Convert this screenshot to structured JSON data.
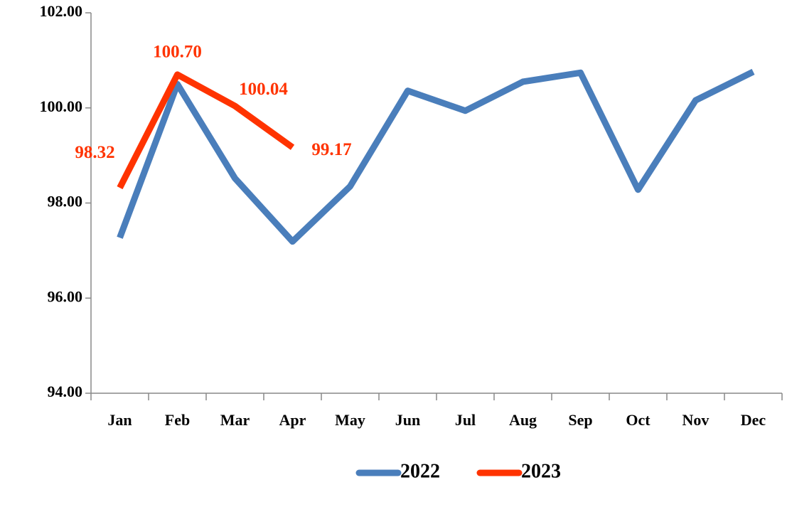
{
  "chart_data": {
    "type": "line",
    "categories": [
      "Jan",
      "Feb",
      "Mar",
      "Apr",
      "May",
      "Jun",
      "Jul",
      "Aug",
      "Sep",
      "Oct",
      "Nov",
      "Dec"
    ],
    "series": [
      {
        "name": "2022",
        "color": "#4a7ebb",
        "values": [
          97.27,
          100.5,
          98.52,
          97.19,
          98.35,
          100.36,
          99.94,
          100.55,
          100.74,
          98.28,
          100.16,
          100.76
        ]
      },
      {
        "name": "2023",
        "color": "#ff3300",
        "values": [
          98.32,
          100.7,
          100.04,
          99.17,
          null,
          null,
          null,
          null,
          null,
          null,
          null,
          null
        ],
        "value_labels": [
          "98.32",
          "100.70",
          "100.04",
          "99.17",
          null,
          null,
          null,
          null,
          null,
          null,
          null,
          null
        ]
      }
    ],
    "ylim": [
      94,
      102
    ],
    "yticks": [
      {
        "value": 94,
        "label": "94.00"
      },
      {
        "value": 96,
        "label": "96.00"
      },
      {
        "value": 98,
        "label": "98.00"
      },
      {
        "value": 100,
        "label": "100.00"
      },
      {
        "value": 102,
        "label": "102.00"
      }
    ],
    "legend": "bottom"
  }
}
